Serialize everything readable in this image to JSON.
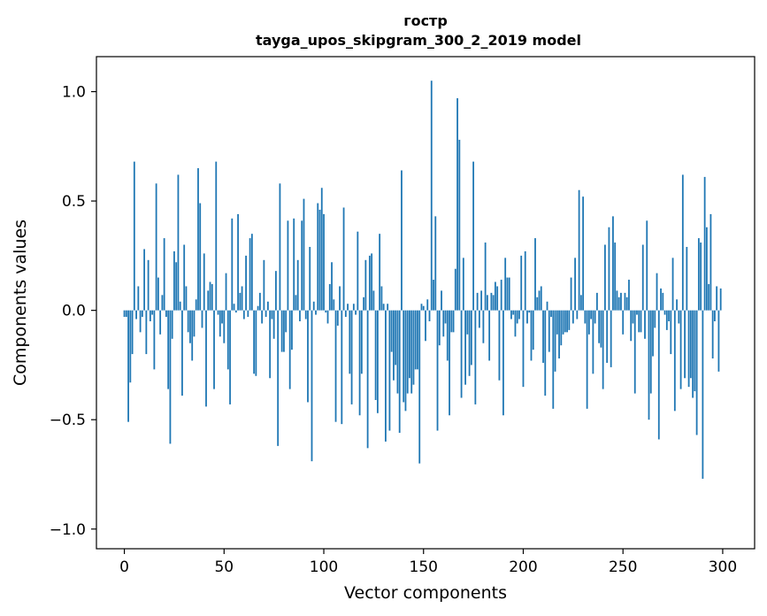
{
  "chart_data": {
    "type": "bar",
    "title_line1": "гостр",
    "title_line2": "tayga_upos_skipgram_300_2_2019 model",
    "xlabel": "Vector components",
    "ylabel": "Components values",
    "xlim": [
      -14,
      316
    ],
    "ylim": [
      -1.09,
      1.16
    ],
    "xticks": [
      0,
      50,
      100,
      150,
      200,
      250,
      300
    ],
    "xtick_labels": [
      "0",
      "50",
      "100",
      "150",
      "200",
      "250",
      "300"
    ],
    "yticks": [
      -1.0,
      -0.5,
      0.0,
      0.5,
      1.0
    ],
    "ytick_labels": [
      "−1.0",
      "−0.5",
      "0.0",
      "0.5",
      "1.0"
    ],
    "color": "#1f77b4",
    "values": [
      -0.03,
      -0.03,
      -0.51,
      -0.33,
      -0.2,
      0.68,
      -0.04,
      0.11,
      -0.1,
      -0.03,
      0.28,
      -0.2,
      0.23,
      -0.05,
      -0.02,
      -0.27,
      0.58,
      0.15,
      -0.11,
      0.07,
      0.33,
      -0.03,
      -0.36,
      -0.61,
      -0.13,
      0.27,
      0.22,
      0.62,
      0.04,
      -0.39,
      0.3,
      0.11,
      -0.1,
      -0.15,
      -0.23,
      -0.12,
      0.05,
      0.65,
      0.49,
      -0.08,
      0.26,
      -0.44,
      0.09,
      0.13,
      0.12,
      -0.36,
      0.68,
      -0.02,
      -0.12,
      -0.06,
      -0.15,
      0.17,
      -0.27,
      -0.43,
      0.42,
      0.03,
      -0.01,
      0.44,
      0.08,
      0.11,
      -0.04,
      0.25,
      -0.03,
      0.33,
      0.35,
      -0.29,
      -0.3,
      0.02,
      0.08,
      -0.06,
      0.23,
      -0.03,
      0.04,
      -0.31,
      -0.04,
      -0.13,
      0.18,
      -0.62,
      0.58,
      -0.19,
      -0.19,
      -0.1,
      0.41,
      -0.36,
      -0.18,
      0.42,
      0.07,
      0.23,
      -0.05,
      0.41,
      0.51,
      -0.04,
      -0.42,
      0.29,
      -0.69,
      0.04,
      -0.02,
      0.49,
      0.46,
      0.56,
      0.44,
      -0.01,
      -0.06,
      0.12,
      0.22,
      0.05,
      -0.51,
      -0.07,
      0.11,
      -0.52,
      0.47,
      -0.03,
      0.03,
      -0.29,
      -0.43,
      0.03,
      -0.02,
      0.36,
      -0.48,
      -0.29,
      0.06,
      0.23,
      -0.63,
      0.25,
      0.26,
      0.09,
      -0.41,
      -0.47,
      0.35,
      0.11,
      0.03,
      -0.6,
      0.03,
      -0.55,
      -0.19,
      -0.32,
      -0.25,
      -0.38,
      -0.56,
      0.64,
      -0.42,
      -0.46,
      -0.38,
      -0.31,
      -0.38,
      -0.34,
      -0.27,
      -0.27,
      -0.7,
      0.03,
      0.02,
      -0.14,
      0.05,
      -0.05,
      1.05,
      0.14,
      0.43,
      -0.55,
      -0.16,
      0.09,
      -0.12,
      -0.06,
      -0.23,
      -0.48,
      -0.1,
      -0.1,
      0.19,
      0.97,
      0.78,
      -0.4,
      0.24,
      -0.34,
      -0.11,
      -0.3,
      -0.25,
      0.68,
      -0.43,
      0.08,
      -0.08,
      0.09,
      -0.15,
      0.31,
      0.07,
      -0.23,
      0.08,
      0.07,
      0.13,
      0.11,
      -0.32,
      0.14,
      -0.48,
      0.24,
      0.15,
      0.15,
      -0.04,
      -0.02,
      -0.12,
      -0.06,
      -0.04,
      0.25,
      -0.35,
      0.27,
      -0.06,
      -0.01,
      -0.23,
      -0.18,
      0.33,
      0.06,
      0.09,
      0.11,
      -0.24,
      -0.39,
      0.04,
      -0.19,
      -0.03,
      -0.45,
      -0.28,
      -0.11,
      -0.22,
      -0.16,
      -0.11,
      -0.1,
      -0.1,
      -0.09,
      0.15,
      -0.06,
      0.24,
      -0.04,
      0.55,
      0.07,
      0.52,
      -0.06,
      -0.45,
      -0.11,
      -0.04,
      -0.29,
      -0.06,
      0.08,
      -0.15,
      -0.17,
      -0.36,
      0.3,
      -0.24,
      0.38,
      -0.26,
      0.43,
      0.31,
      0.09,
      0.06,
      0.08,
      -0.11,
      0.08,
      0.06,
      0.14,
      -0.14,
      -0.06,
      -0.38,
      -0.02,
      -0.1,
      -0.1,
      0.3,
      -0.13,
      0.41,
      -0.5,
      -0.38,
      -0.21,
      -0.08,
      0.17,
      -0.59,
      0.1,
      0.08,
      -0.02,
      -0.09,
      -0.05,
      -0.2,
      0.24,
      -0.46,
      0.05,
      -0.06,
      -0.36,
      0.62,
      -0.31,
      0.29,
      -0.35,
      -0.31,
      -0.4,
      -0.37,
      -0.57,
      0.33,
      0.31,
      -0.77,
      0.61,
      0.38,
      0.12,
      0.44,
      -0.22,
      -0.05,
      0.11,
      -0.28,
      0.1
    ]
  }
}
